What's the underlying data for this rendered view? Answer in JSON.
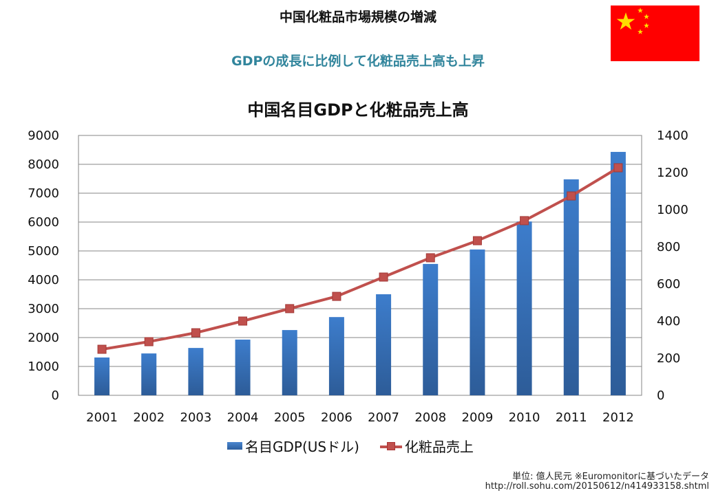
{
  "header": {
    "title": "中国化粧品市場規模の増減",
    "subtitle": "GDPの成長に比例して化粧品売上高も上昇",
    "flag": "china-flag"
  },
  "chart_data": {
    "type": "bar",
    "title": "中国名目GDPと化粧品売上高",
    "categories": [
      "2001",
      "2002",
      "2003",
      "2004",
      "2005",
      "2006",
      "2007",
      "2008",
      "2009",
      "2010",
      "2011",
      "2012"
    ],
    "series": [
      {
        "name": "名目GDP(USドル)",
        "type": "bar",
        "axis": "left",
        "color": "#3a75c4",
        "values": [
          1310,
          1450,
          1640,
          1930,
          2260,
          2710,
          3500,
          4550,
          5050,
          6020,
          7480,
          8430
        ]
      },
      {
        "name": "化粧品売上",
        "type": "line",
        "axis": "right",
        "color": "#c0504d",
        "values": [
          248,
          289,
          337,
          400,
          467,
          533,
          637,
          741,
          833,
          941,
          1074,
          1226
        ]
      }
    ],
    "left_axis": {
      "range": [
        0,
        9000
      ],
      "ticks": [
        "0",
        "1000",
        "2000",
        "3000",
        "4000",
        "5000",
        "6000",
        "7000",
        "8000",
        "9000"
      ]
    },
    "right_axis": {
      "range": [
        0,
        1400
      ],
      "ticks": [
        "0",
        "200",
        "400",
        "600",
        "800",
        "1000",
        "1200",
        "1400"
      ]
    },
    "xlabel": "",
    "ylabel": "",
    "grid": true,
    "legend_position": "bottom"
  },
  "footer": {
    "unit_note": "単位: 億人民元 ※Euromonitorに基づいたデータ",
    "source_url": "http://roll.sohu.com/20150612/n414933158.shtml"
  }
}
